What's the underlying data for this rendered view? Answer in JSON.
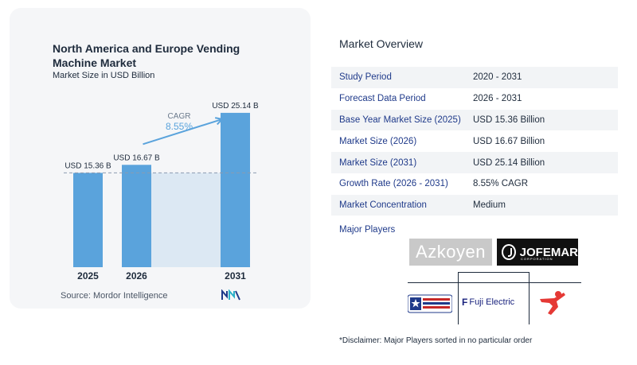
{
  "chart_data": {
    "type": "bar",
    "title": "North America and Europe Vending Machine Market",
    "subtitle": "Market Size in USD Billion",
    "categories": [
      "2025",
      "2026",
      "2031"
    ],
    "values": [
      15.36,
      16.67,
      25.14
    ],
    "data_labels": [
      "USD 15.36 B",
      "USD 16.67 B",
      "USD 25.14 B"
    ],
    "cagr_label": "CAGR",
    "cagr_value": "8.55%",
    "ylim": [
      0,
      27.2
    ],
    "bar_color": "#5aa3dc",
    "band_color": "#dce8f3",
    "arrow_color": "#5aa3dc"
  },
  "source": "Source:  Mordor Intelligence",
  "overview": {
    "title": "Market Overview",
    "rows": [
      {
        "label": "Study Period",
        "value": "2020 - 2031"
      },
      {
        "label": "Forecast Data Period",
        "value": "2026 - 2031"
      },
      {
        "label": "Base Year Market Size (2025)",
        "value": "USD 15.36 Billion"
      },
      {
        "label": "Market Size (2026)",
        "value": "USD 16.67 Billion"
      },
      {
        "label": "Market Size (2031)",
        "value": "USD 25.14 Billion"
      },
      {
        "label": "Growth Rate (2026 - 2031)",
        "value": "8.55% CAGR"
      },
      {
        "label": "Market Concentration",
        "value": "Medium"
      }
    ],
    "players_label": "Major Players",
    "players": [
      "Azkoyen",
      "JOFEMAR",
      "Fuji Electric"
    ],
    "jofemar_sub": "CORPORATION",
    "disclaimer": "*Disclaimer: Major Players sorted in no particular order"
  }
}
